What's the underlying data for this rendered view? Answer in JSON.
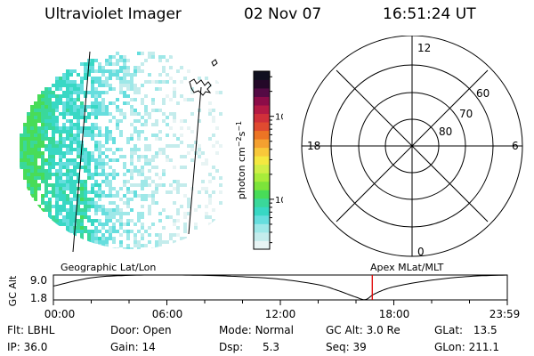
{
  "header": {
    "title": "Ultraviolet Imager",
    "date": "02 Nov 07",
    "time": "16:51:24 UT"
  },
  "colorbar": {
    "label": "photon cm^-2 s^-1",
    "ticks": [
      {
        "label": "10",
        "value": 10
      },
      {
        "label": "100",
        "value": 100
      }
    ],
    "range": [
      2.5,
      350
    ],
    "scale": "log",
    "colors": [
      "#e8f4f4",
      "#c4ecec",
      "#9ee8e8",
      "#66dede",
      "#38d8c4",
      "#3ad89a",
      "#48dc58",
      "#7ce43a",
      "#a8ec3a",
      "#d0ee46",
      "#f4e840",
      "#f8c83a",
      "#f4a030",
      "#ec7424",
      "#e04a30",
      "#d0303a",
      "#b41a44",
      "#8c0c48",
      "#540a44",
      "#240828",
      "#101020"
    ]
  },
  "polar": {
    "labels": [
      {
        "text": "12",
        "pos": "top"
      },
      {
        "text": "6",
        "pos": "right"
      },
      {
        "text": "0",
        "pos": "bottom"
      },
      {
        "text": "18",
        "pos": "left"
      },
      {
        "text": "60",
        "pos": "ring-outer"
      },
      {
        "text": "70",
        "pos": "ring-middle"
      },
      {
        "text": "80",
        "pos": "ring-inner"
      }
    ],
    "latitudes": [
      60,
      70,
      80
    ]
  },
  "timeline": {
    "left_label": "Geographic Lat/Lon",
    "right_label": "Apex MLat/MLT",
    "ylabel": "GC Alt"
  },
  "chart_data": {
    "type": "line",
    "title": "",
    "xlabel": "",
    "ylabel": "GC Alt",
    "x_ticks": [
      "00:00",
      "06:00",
      "12:00",
      "18:00",
      "23:59"
    ],
    "y_ticks": [
      "9.0",
      "1.8"
    ],
    "xlim": [
      0,
      24
    ],
    "ylim": [
      1.8,
      9.0
    ],
    "series": [
      {
        "x": [
          0,
          2,
          4,
          6,
          8,
          10,
          12,
          14,
          15,
          16,
          16.5,
          17,
          18,
          20,
          22,
          24
        ],
        "values": [
          5.8,
          8.2,
          8.9,
          9.0,
          8.9,
          8.5,
          7.8,
          6.2,
          4.6,
          2.6,
          1.9,
          3.6,
          5.6,
          7.5,
          8.6,
          9.0
        ]
      }
    ],
    "current_time": 16.86
  },
  "status": {
    "flt_label": "Flt:",
    "flt_value": "LBHL",
    "door_label": "Door:",
    "door_value": "Open",
    "mode_label": "Mode:",
    "mode_value": "Normal",
    "gcalt_label": "GC Alt:",
    "gcalt_value": "3.0 Re",
    "glat_label": "GLat:",
    "glat_value": "13.5",
    "ip_label": "IP:",
    "ip_value": "36.0",
    "gain_label": "Gain:",
    "gain_value": "14",
    "dsp_label": "Dsp:",
    "dsp_value": "5.3",
    "seq_label": "Seq:",
    "seq_value": "39",
    "glon_label": "GLon:",
    "glon_value": "211.1"
  }
}
